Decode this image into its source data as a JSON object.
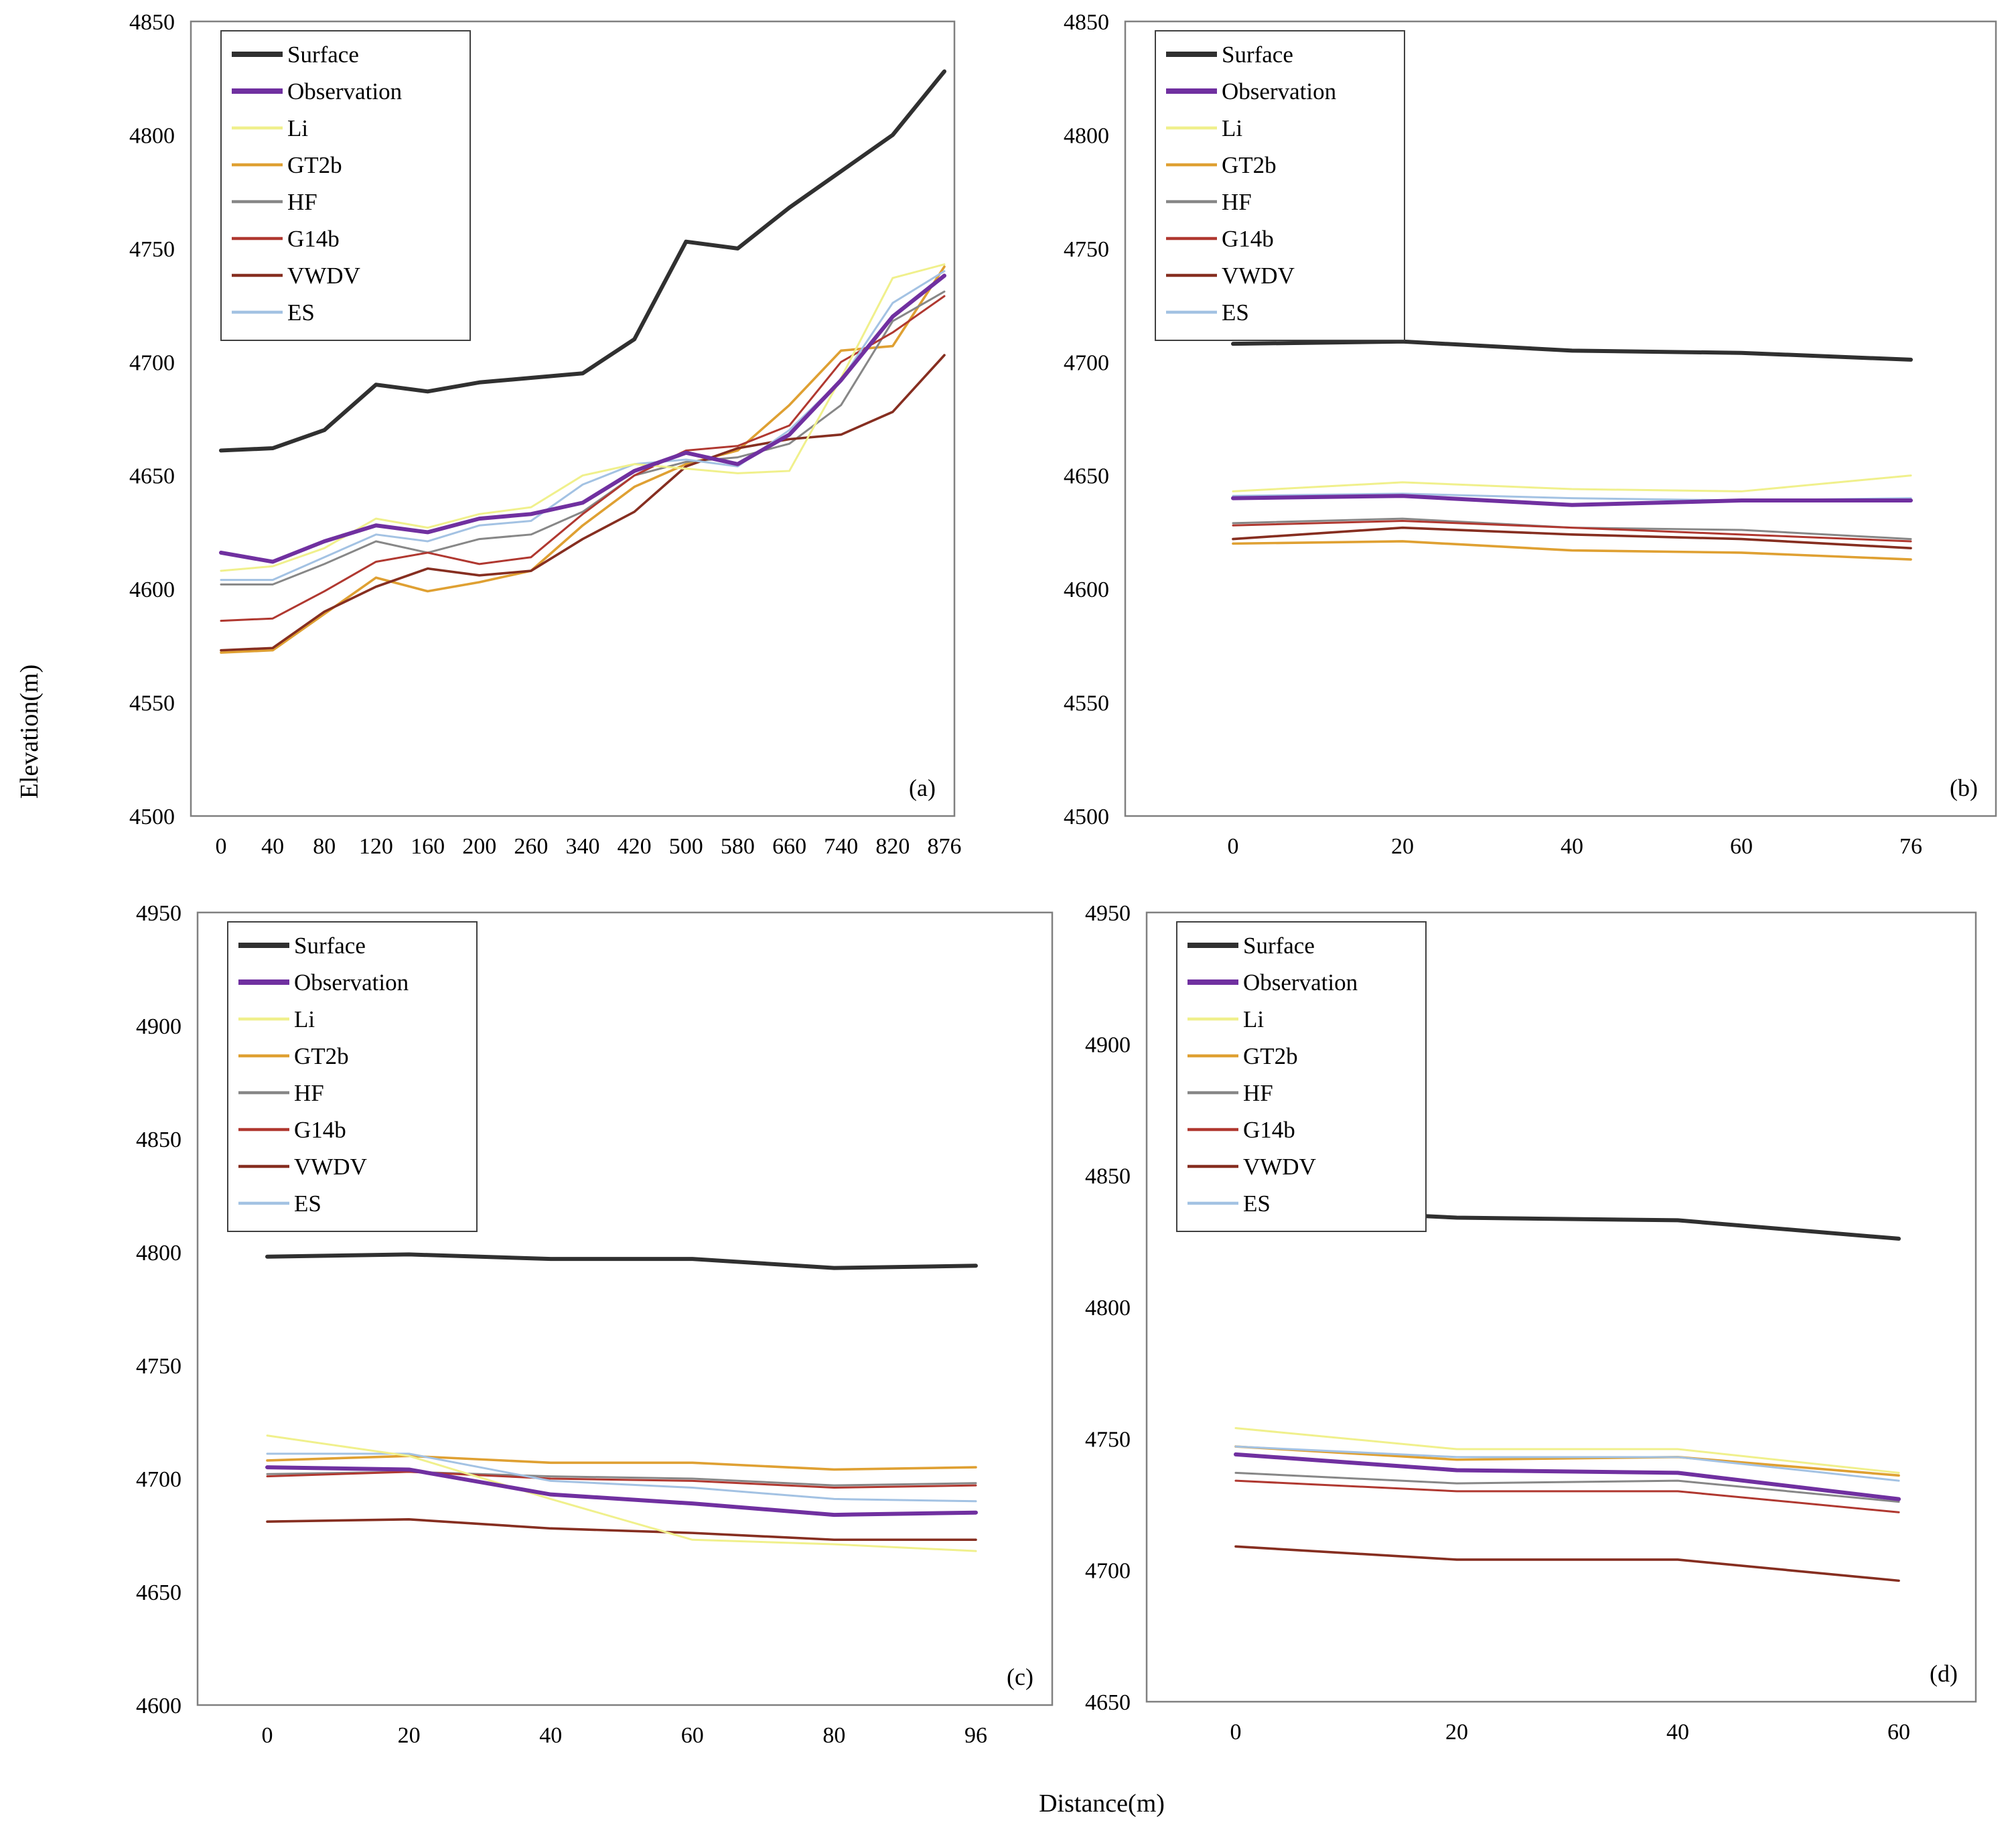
{
  "figure": {
    "y_axis_title": "Elevation(m)",
    "x_axis_title": "Distance(m)"
  },
  "legend": {
    "entries": [
      "Surface",
      "Observation",
      "Li",
      "GT2b",
      "HF",
      "G14b",
      "VWDV",
      "ES"
    ]
  },
  "colors": {
    "Surface": "#303030",
    "Observation": "#7030a0",
    "Li": "#f0f08c",
    "GT2b": "#dfa032",
    "HF": "#878787",
    "G14b": "#b03830",
    "VWDV": "#862e20",
    "ES": "#a3c2e3"
  },
  "chart_data": [
    {
      "type": "line",
      "panel": "a",
      "panel_label": "(a)",
      "legend_position": "top-left",
      "x_tick_labels": [
        "0",
        "40",
        "80",
        "120",
        "160",
        "200",
        "260",
        "340",
        "420",
        "500",
        "580",
        "660",
        "740",
        "820",
        "876"
      ],
      "x": [
        0,
        40,
        80,
        120,
        160,
        200,
        260,
        340,
        420,
        500,
        580,
        660,
        740,
        820,
        876
      ],
      "xlabel": "Distance(m)",
      "ylabel": "Elevation(m)",
      "ylim": [
        4500,
        4850
      ],
      "y_tick_labels": [
        "4500",
        "4550",
        "4600",
        "4650",
        "4700",
        "4750",
        "4800",
        "4850"
      ],
      "grid": false,
      "series": [
        {
          "name": "Surface",
          "values": [
            4661,
            4662,
            4670,
            4690,
            4687,
            4691,
            4693,
            4695,
            4710,
            4753,
            4750,
            4768,
            4784,
            4800,
            4828
          ]
        },
        {
          "name": "Observation",
          "values": [
            4616,
            4612,
            4621,
            4628,
            4625,
            4631,
            4633,
            4638,
            4652,
            4660,
            4655,
            4668,
            4692,
            4720,
            4738
          ]
        },
        {
          "name": "Li",
          "values": [
            4608,
            4610,
            4618,
            4631,
            4627,
            4633,
            4636,
            4650,
            4655,
            4653,
            4651,
            4652,
            4693,
            4737,
            4743
          ]
        },
        {
          "name": "GT2b",
          "values": [
            4572,
            4573,
            4589,
            4605,
            4599,
            4603,
            4608,
            4628,
            4645,
            4655,
            4661,
            4681,
            4705,
            4707,
            4742
          ]
        },
        {
          "name": "HF",
          "values": [
            4602,
            4602,
            4611,
            4621,
            4616,
            4622,
            4624,
            4634,
            4650,
            4656,
            4658,
            4664,
            4681,
            4718,
            4731
          ]
        },
        {
          "name": "G14b",
          "values": [
            4586,
            4587,
            4599,
            4612,
            4616,
            4611,
            4614,
            4633,
            4650,
            4661,
            4663,
            4672,
            4700,
            4713,
            4729
          ]
        },
        {
          "name": "VWDV",
          "values": [
            4573,
            4574,
            4590,
            4601,
            4609,
            4606,
            4608,
            4622,
            4634,
            4654,
            4662,
            4666,
            4668,
            4678,
            4703
          ]
        },
        {
          "name": "ES",
          "values": [
            4604,
            4604,
            4614,
            4624,
            4621,
            4628,
            4630,
            4646,
            4655,
            4657,
            4654,
            4670,
            4692,
            4726,
            4740
          ]
        }
      ]
    },
    {
      "type": "line",
      "panel": "b",
      "panel_label": "(b)",
      "legend_position": "top-left",
      "x_tick_labels": [
        "0",
        "20",
        "40",
        "60",
        "76"
      ],
      "x": [
        0,
        20,
        40,
        60,
        76
      ],
      "xlabel": "Distance(m)",
      "ylabel": "Elevation(m)",
      "ylim": [
        4500,
        4850
      ],
      "y_tick_labels": [
        "4500",
        "4550",
        "4600",
        "4650",
        "4700",
        "4750",
        "4800",
        "4850"
      ],
      "grid": false,
      "series": [
        {
          "name": "Surface",
          "values": [
            4708,
            4709,
            4705,
            4704,
            4701
          ]
        },
        {
          "name": "Observation",
          "values": [
            4640,
            4641,
            4637,
            4639,
            4639
          ]
        },
        {
          "name": "Li",
          "values": [
            4643,
            4647,
            4644,
            4643,
            4650
          ]
        },
        {
          "name": "GT2b",
          "values": [
            4620,
            4621,
            4617,
            4616,
            4613
          ]
        },
        {
          "name": "HF",
          "values": [
            4629,
            4631,
            4627,
            4626,
            4622
          ]
        },
        {
          "name": "G14b",
          "values": [
            4628,
            4630,
            4627,
            4624,
            4621
          ]
        },
        {
          "name": "VWDV",
          "values": [
            4622,
            4627,
            4624,
            4622,
            4618
          ]
        },
        {
          "name": "ES",
          "values": [
            4641,
            4642,
            4640,
            4639,
            4640
          ]
        }
      ]
    },
    {
      "type": "line",
      "panel": "c",
      "panel_label": "(c)",
      "legend_position": "top-left",
      "x_tick_labels": [
        "0",
        "20",
        "40",
        "60",
        "80",
        "96"
      ],
      "x": [
        0,
        20,
        40,
        60,
        80,
        96
      ],
      "xlabel": "Distance(m)",
      "ylabel": "Elevation(m)",
      "ylim": [
        4600,
        4950
      ],
      "y_tick_labels": [
        "4600",
        "4650",
        "4700",
        "4750",
        "4800",
        "4850",
        "4900",
        "4950"
      ],
      "grid": false,
      "series": [
        {
          "name": "Surface",
          "values": [
            4798,
            4799,
            4797,
            4797,
            4793,
            4794
          ]
        },
        {
          "name": "Observation",
          "values": [
            4705,
            4704,
            4693,
            4689,
            4684,
            4685
          ]
        },
        {
          "name": "Li",
          "values": [
            4719,
            4710,
            4691,
            4673,
            4671,
            4668
          ]
        },
        {
          "name": "GT2b",
          "values": [
            4708,
            4710,
            4707,
            4707,
            4704,
            4705
          ]
        },
        {
          "name": "HF",
          "values": [
            4702,
            4703,
            4701,
            4700,
            4697,
            4698
          ]
        },
        {
          "name": "G14b",
          "values": [
            4701,
            4703,
            4700,
            4699,
            4696,
            4697
          ]
        },
        {
          "name": "VWDV",
          "values": [
            4681,
            4682,
            4678,
            4676,
            4673,
            4673
          ]
        },
        {
          "name": "ES",
          "values": [
            4711,
            4711,
            4699,
            4696,
            4691,
            4690
          ]
        }
      ]
    },
    {
      "type": "line",
      "panel": "d",
      "panel_label": "(d)",
      "legend_position": "top-left",
      "x_tick_labels": [
        "0",
        "20",
        "40",
        "60"
      ],
      "x": [
        0,
        20,
        40,
        60
      ],
      "xlabel": "Distance(m)",
      "ylabel": "Elevation(m)",
      "ylim": [
        4650,
        4950
      ],
      "y_tick_labels": [
        "4650",
        "4700",
        "4750",
        "4800",
        "4850",
        "4900",
        "4950"
      ],
      "grid": false,
      "series": [
        {
          "name": "Surface",
          "values": [
            4838,
            4834,
            4833,
            4826
          ]
        },
        {
          "name": "Observation",
          "values": [
            4744,
            4738,
            4737,
            4727
          ]
        },
        {
          "name": "Li",
          "values": [
            4754,
            4746,
            4746,
            4737
          ]
        },
        {
          "name": "GT2b",
          "values": [
            4747,
            4742,
            4743,
            4736
          ]
        },
        {
          "name": "HF",
          "values": [
            4737,
            4733,
            4734,
            4726
          ]
        },
        {
          "name": "G14b",
          "values": [
            4734,
            4730,
            4730,
            4722
          ]
        },
        {
          "name": "VWDV",
          "values": [
            4709,
            4704,
            4704,
            4696
          ]
        },
        {
          "name": "ES",
          "values": [
            4747,
            4743,
            4743,
            4734
          ]
        }
      ]
    }
  ]
}
